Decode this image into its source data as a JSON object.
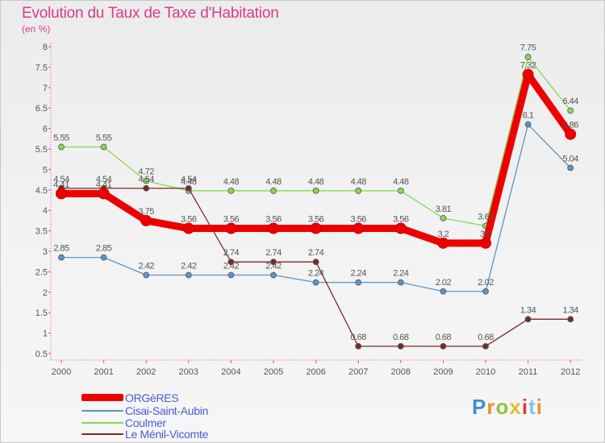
{
  "page": {
    "title": "Evolution du Taux de Taxe d'Habitation",
    "subtitle": "(en %)"
  },
  "brand": {
    "text": "Proxiti",
    "letter_colors": [
      "#3d8fd6",
      "#e8912a",
      "#8cc63f",
      "#d9c23a",
      "#e33a3a",
      "#7cc6e8",
      "#e8912a"
    ]
  },
  "chart_data": {
    "type": "line",
    "x": [
      "2000",
      "2001",
      "2002",
      "2003",
      "2004",
      "2005",
      "2006",
      "2007",
      "2008",
      "2009",
      "2010",
      "2011",
      "2012"
    ],
    "y_ticks": [
      "0.5",
      "1",
      "1.5",
      "2",
      "2.5",
      "3",
      "3.5",
      "4",
      "4.5",
      "5",
      "5.5",
      "6",
      "6.5",
      "7",
      "7.5",
      "8"
    ],
    "ylim": [
      0.5,
      8
    ],
    "grid": false,
    "legend_position": "bottom-left",
    "series": [
      {
        "name": "ORGèRES",
        "color": "#ee0000",
        "values": [
          4.41,
          4.41,
          3.75,
          3.56,
          3.56,
          3.56,
          3.56,
          3.56,
          3.56,
          3.2,
          3.2,
          7.32,
          5.86
        ],
        "labels": [
          "4.41",
          "4.41",
          "3.75",
          "3.56",
          "3.56",
          "3.56",
          "3.56",
          "3.56",
          "3.56",
          "3.2",
          "3.2",
          "7.32",
          "5.86"
        ]
      },
      {
        "name": "Cisai-Saint-Aubin",
        "color": "#5a96c8",
        "values": [
          2.85,
          2.85,
          2.42,
          2.42,
          2.42,
          2.42,
          2.24,
          2.24,
          2.24,
          2.02,
          2.02,
          6.1,
          5.04
        ],
        "labels": [
          "2.85",
          "2.85",
          "2.42",
          "2.42",
          "2.42",
          "2.42",
          "2.24",
          "2.24",
          "2.24",
          "2.02",
          "2.02",
          "6.1",
          "5.04"
        ]
      },
      {
        "name": "Coulmer",
        "color": "#88d855",
        "values": [
          5.55,
          5.55,
          4.72,
          4.48,
          4.48,
          4.48,
          4.48,
          4.48,
          4.48,
          3.81,
          3.62,
          7.75,
          6.44
        ],
        "labels": [
          "5.55",
          "5.55",
          "4.72",
          "4.48",
          "4.48",
          "4.48",
          "4.48",
          "4.48",
          "4.48",
          "3.81",
          "3.62",
          "7.75",
          "6.44"
        ]
      },
      {
        "name": "Le Ménil-Vicomte",
        "color": "#7a2a2a",
        "values": [
          4.54,
          4.54,
          4.54,
          4.54,
          2.74,
          2.74,
          2.74,
          0.68,
          0.68,
          0.68,
          0.68,
          1.34,
          1.34
        ],
        "labels": [
          "4.54",
          "4.54",
          "4.54",
          "4.54",
          "2.74",
          "2.74",
          "2.74",
          "0.68",
          "0.68",
          "0.68",
          "0.68",
          "1.34",
          "1.34"
        ]
      }
    ]
  }
}
